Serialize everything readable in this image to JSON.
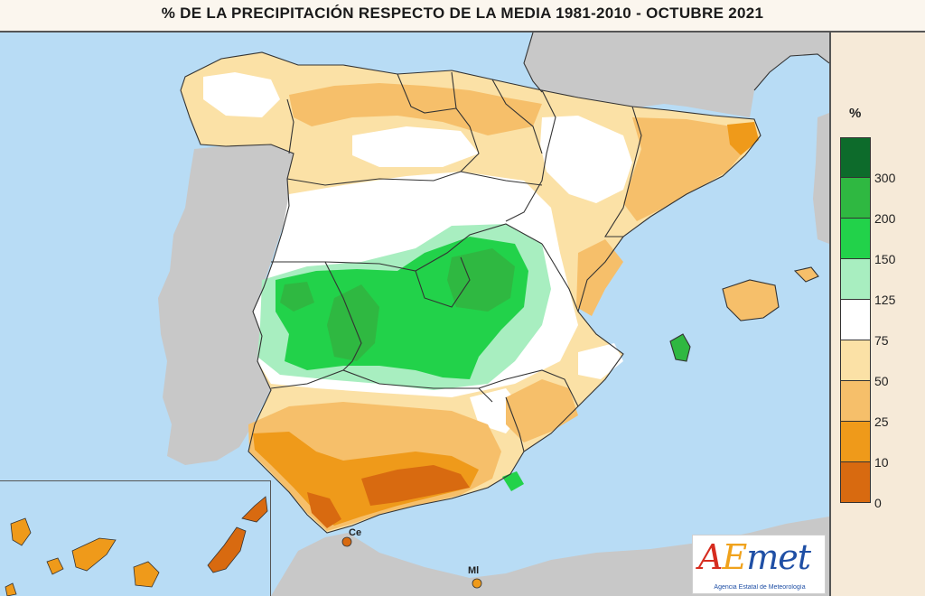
{
  "title": "% DE LA PRECIPITACIÓN RESPECTO DE LA MEDIA 1981-2010 - OCTUBRE 2021",
  "legend": {
    "unit": "%",
    "classes": [
      {
        "color": "#0d6b2b"
      },
      {
        "color": "#2fb841"
      },
      {
        "color": "#22d24a"
      },
      {
        "color": "#a8eec0"
      },
      {
        "color": "#ffffff"
      },
      {
        "color": "#fbe1a6"
      },
      {
        "color": "#f6bf6a"
      },
      {
        "color": "#ef9a1a"
      },
      {
        "color": "#d86a10"
      }
    ],
    "breaks": [
      "300",
      "200",
      "150",
      "125",
      "75",
      "50",
      "25",
      "10",
      "0"
    ]
  },
  "places": {
    "ceuta": "Ce",
    "melilla": "Ml"
  },
  "logo": {
    "a": "A",
    "e": "E",
    "rest": "met",
    "subtitle": "Agencia Estatal de Meteorología"
  },
  "colors": {
    "sea": "#b8dcf5",
    "land_foreign": "#c8c8c8",
    "border": "#333333"
  }
}
